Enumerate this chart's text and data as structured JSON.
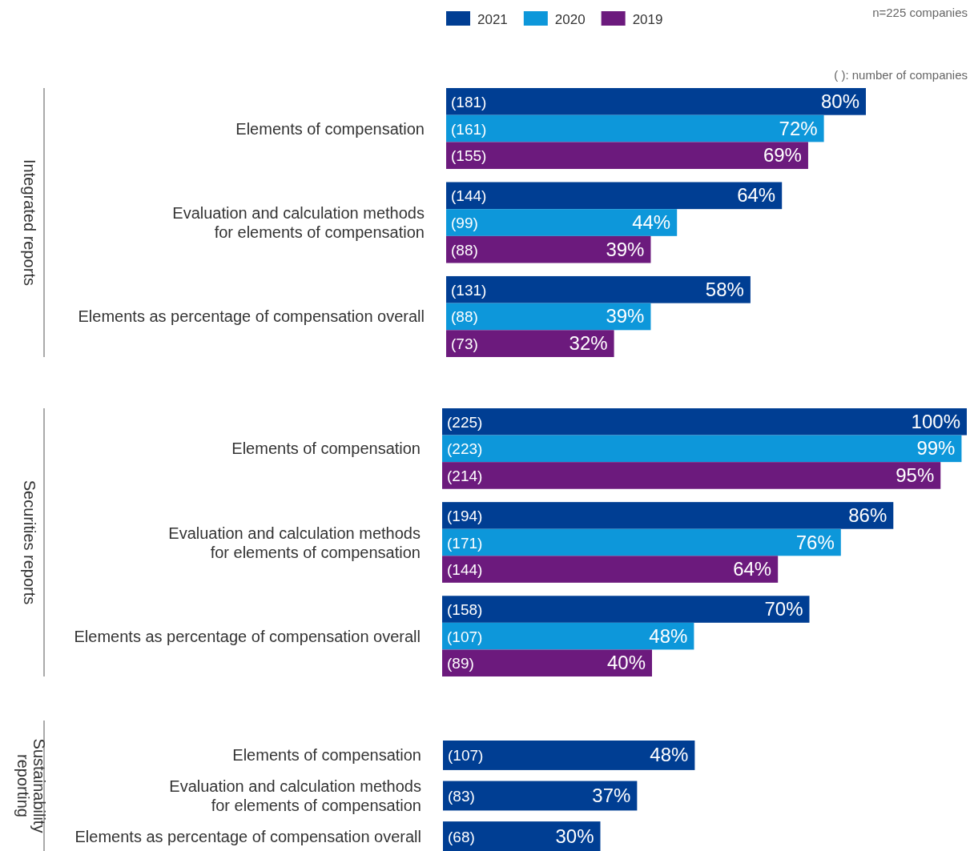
{
  "chart_data": [
    {
      "type": "bar",
      "orientation": "horizontal",
      "ylabel": "Integrated reports",
      "legend": "top",
      "tick_labels": false,
      "categories": [
        "Elements of compensation",
        "Evaluation and calculation methods\nfor elements of compensation",
        "Elements as percentage of compensation overall"
      ],
      "series": [
        {
          "name": "2021",
          "color": "#003e93",
          "values": [
            80,
            64,
            58
          ],
          "value_labels": [
            "80%",
            "64%",
            "58%"
          ]
        },
        {
          "name": "2020",
          "color": "#0d97da",
          "values": [
            72,
            44,
            39
          ],
          "value_labels": [
            "72%",
            "44%",
            "39%"
          ]
        },
        {
          "name": "2019",
          "color": "#6c1a7d",
          "values": [
            69,
            39,
            32
          ],
          "value_labels": [
            "69%",
            "39%",
            "32%"
          ]
        }
      ],
      "annotations": [
        "n=225 companies",
        "( ): number of companies",
        "(181)",
        "(144)",
        "(131)",
        "(161)",
        "(99)",
        "(88)",
        "(155)",
        "(88)",
        "(73)"
      ]
    },
    {
      "type": "bar",
      "orientation": "horizontal",
      "ylabel": "Securities reports",
      "tick_labels": false,
      "categories": [
        "Elements of compensation",
        "Evaluation and calculation methods\nfor elements of compensation",
        "Elements as percentage of compensation overall"
      ],
      "series": [
        {
          "color": "#003e93",
          "values": [
            100,
            86,
            70
          ],
          "value_labels": [
            "100%",
            "86%",
            "70%"
          ]
        },
        {
          "color": "#0d97da",
          "values": [
            99,
            76,
            48
          ],
          "value_labels": [
            "99%",
            "76%",
            "48%"
          ]
        },
        {
          "color": "#6c1a7d",
          "values": [
            95,
            64,
            40
          ],
          "value_labels": [
            "95%",
            "64%",
            "40%"
          ]
        }
      ],
      "annotations": [
        "(225)",
        "(194)",
        "(158)",
        "(223)",
        "(171)",
        "(107)",
        "(214)",
        "(144)",
        "(89)"
      ]
    },
    {
      "type": "bar",
      "orientation": "horizontal",
      "ylabel": "Sustainability\nreporting",
      "tick_labels": false,
      "categories": [
        "Elements of compensation",
        "Evaluation and calculation methods\nfor elements of compensation",
        "Elements as percentage of compensation overall"
      ],
      "series": [
        {
          "color": "#003e93",
          "values": [
            48,
            37,
            30
          ],
          "value_labels": [
            "48%",
            "37%",
            "30%"
          ]
        }
      ],
      "annotations": [
        "(107)",
        "(83)",
        "(68)"
      ]
    }
  ]
}
